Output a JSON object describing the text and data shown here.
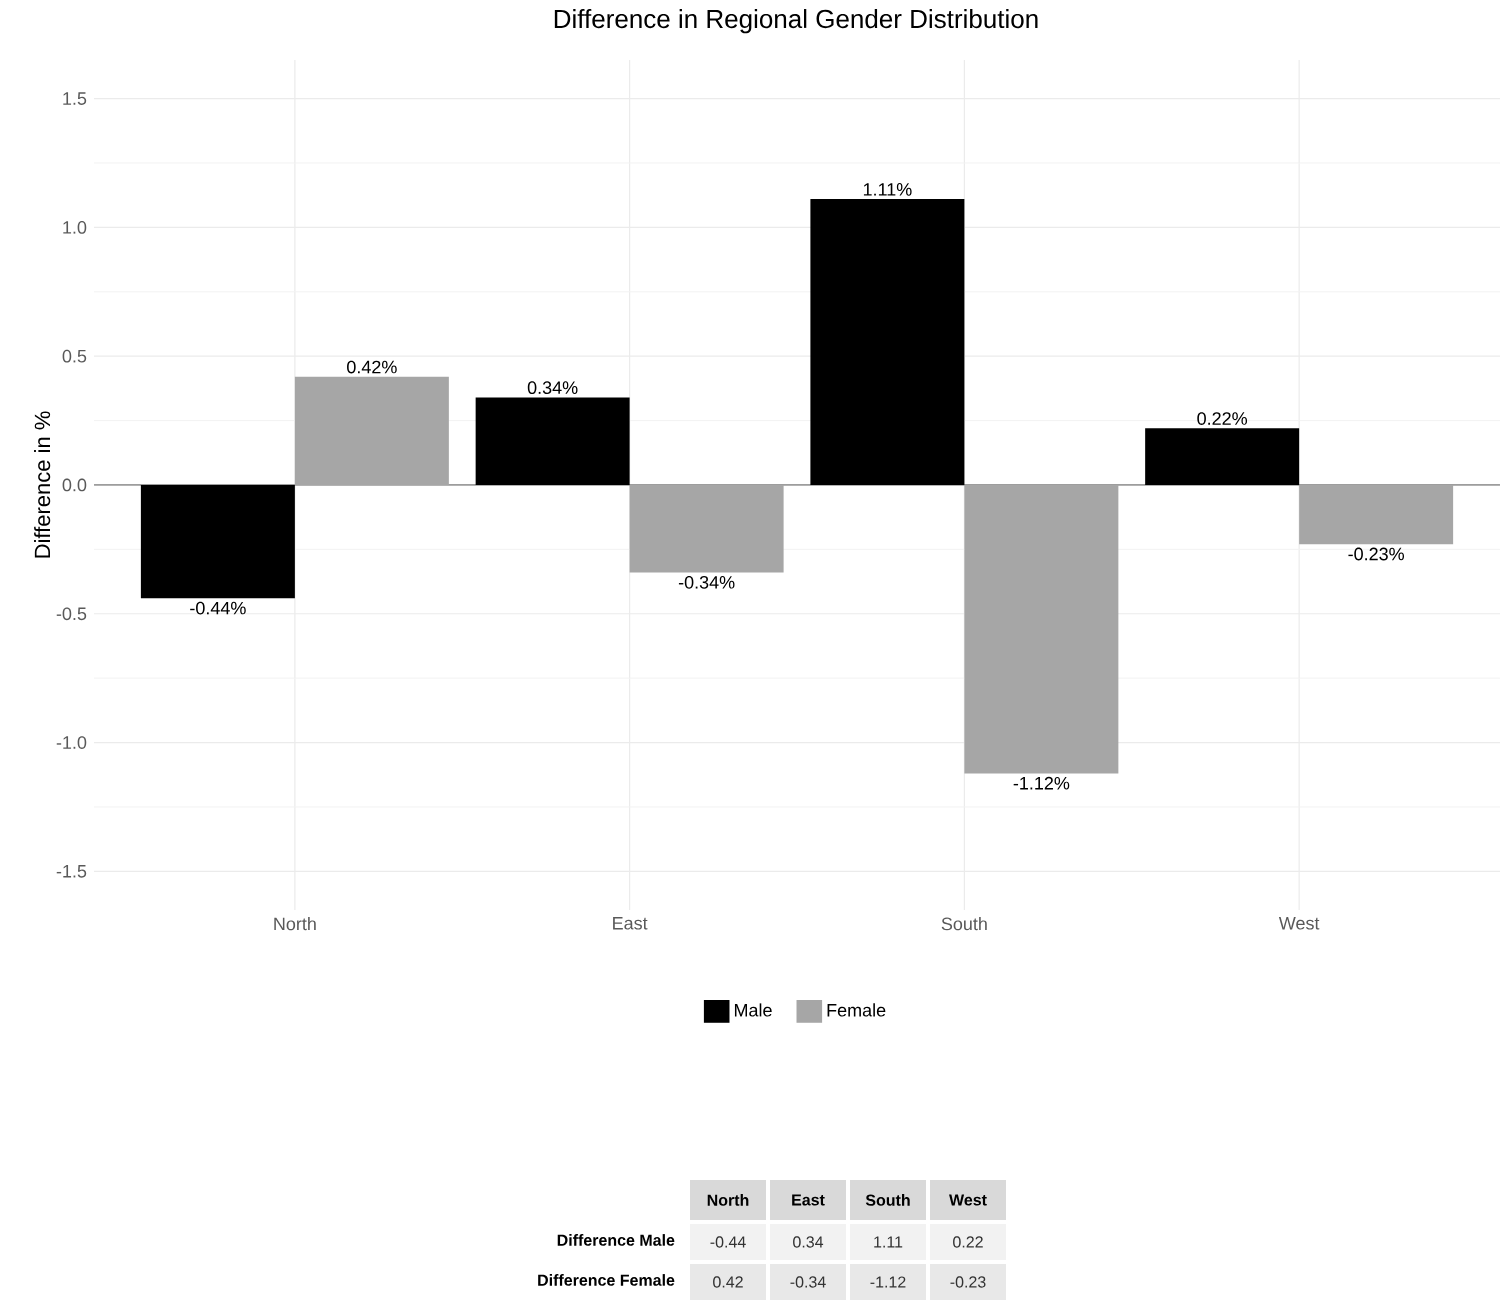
{
  "chart_data": {
    "type": "bar",
    "title": "Difference in Regional Gender Distribution",
    "ylabel": "Difference in %",
    "categories": [
      "North",
      "East",
      "South",
      "West"
    ],
    "series": [
      {
        "name": "Male",
        "color": "#000000",
        "values": [
          -0.44,
          0.34,
          1.11,
          0.22
        ],
        "value_labels": [
          "-0.44%",
          "0.34%",
          "1.11%",
          "0.22%"
        ]
      },
      {
        "name": "Female",
        "color": "#a6a6a6",
        "values": [
          0.42,
          -0.34,
          -1.12,
          -0.23
        ],
        "value_labels": [
          "0.42%",
          "-0.34%",
          "-1.12%",
          "-0.23%"
        ]
      }
    ],
    "ylim": [
      -1.65,
      1.65
    ],
    "yticks": [
      -1.5,
      {
        "value": -1.0,
        "label": "-1.0"
      },
      -0.5,
      {
        "value": 0.0,
        "label": "0.0"
      },
      0.5,
      {
        "value": 1.0,
        "label": "1.0"
      },
      1.5
    ],
    "ref_lines": [
      {
        "axis": "y",
        "value": 0,
        "color": "#7f7f7f"
      }
    ],
    "grid": true,
    "legend": "bottom",
    "data_labels": true,
    "annotations": [
      "Difference Male",
      "-0.44",
      "0.34",
      "1.11",
      "0.22",
      "Difference Female",
      "0.42",
      "-0.34",
      "-1.12",
      "-0.23"
    ]
  }
}
